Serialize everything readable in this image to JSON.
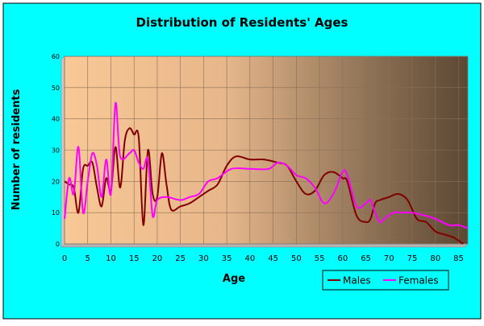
{
  "chart_data": {
    "type": "line",
    "title": "Distribution of Residents' Ages",
    "xlabel": "Age",
    "ylabel": "Number of residents",
    "xlim": [
      0,
      87
    ],
    "ylim": [
      0,
      60
    ],
    "x_ticks": [
      0,
      5,
      10,
      15,
      20,
      25,
      30,
      35,
      40,
      45,
      50,
      55,
      60,
      65,
      70,
      75,
      80,
      85
    ],
    "y_ticks": [
      0,
      10,
      20,
      30,
      40,
      50,
      60
    ],
    "grid": true,
    "legend_position": "bottom-right",
    "series": [
      {
        "name": "Males",
        "color": "#800000",
        "points": [
          [
            0,
            20
          ],
          [
            1,
            19
          ],
          [
            2,
            18
          ],
          [
            3,
            10
          ],
          [
            4,
            24
          ],
          [
            5,
            25
          ],
          [
            6,
            26
          ],
          [
            7,
            18
          ],
          [
            8,
            12
          ],
          [
            9,
            21
          ],
          [
            10,
            17
          ],
          [
            11,
            31
          ],
          [
            12,
            18
          ],
          [
            13,
            33
          ],
          [
            14,
            37
          ],
          [
            15,
            35
          ],
          [
            16,
            34
          ],
          [
            17,
            6
          ],
          [
            18,
            30
          ],
          [
            19,
            16
          ],
          [
            20,
            15
          ],
          [
            21,
            29
          ],
          [
            22,
            19
          ],
          [
            23,
            11
          ],
          [
            25,
            12
          ],
          [
            27,
            13
          ],
          [
            29,
            15
          ],
          [
            31,
            17
          ],
          [
            33,
            19
          ],
          [
            35,
            25
          ],
          [
            37,
            28
          ],
          [
            40,
            27
          ],
          [
            43,
            27
          ],
          [
            46,
            26
          ],
          [
            48,
            25
          ],
          [
            50,
            20
          ],
          [
            52,
            16
          ],
          [
            54,
            17
          ],
          [
            56,
            22
          ],
          [
            58,
            23
          ],
          [
            60,
            21
          ],
          [
            61,
            20
          ],
          [
            63,
            9
          ],
          [
            65,
            7
          ],
          [
            66,
            8
          ],
          [
            67,
            13
          ],
          [
            68,
            14
          ],
          [
            70,
            15
          ],
          [
            72,
            16
          ],
          [
            74,
            14
          ],
          [
            76,
            8
          ],
          [
            78,
            7
          ],
          [
            80,
            4
          ],
          [
            82,
            3
          ],
          [
            84,
            2
          ],
          [
            86,
            0
          ]
        ]
      },
      {
        "name": "Females",
        "color": "#FF00FF",
        "points": [
          [
            0,
            8
          ],
          [
            1,
            21
          ],
          [
            2,
            16
          ],
          [
            3,
            31
          ],
          [
            4,
            10
          ],
          [
            5,
            20
          ],
          [
            6,
            29
          ],
          [
            7,
            25
          ],
          [
            8,
            15
          ],
          [
            9,
            27
          ],
          [
            10,
            16
          ],
          [
            11,
            45
          ],
          [
            12,
            28
          ],
          [
            14,
            29
          ],
          [
            15,
            30
          ],
          [
            16,
            26
          ],
          [
            17,
            24
          ],
          [
            18,
            27
          ],
          [
            19,
            9
          ],
          [
            20,
            14
          ],
          [
            22,
            15
          ],
          [
            25,
            14
          ],
          [
            27,
            15
          ],
          [
            29,
            16
          ],
          [
            31,
            20
          ],
          [
            33,
            21
          ],
          [
            36,
            24
          ],
          [
            40,
            24
          ],
          [
            44,
            24
          ],
          [
            46,
            26
          ],
          [
            48,
            25
          ],
          [
            50,
            22
          ],
          [
            52,
            21
          ],
          [
            54,
            18
          ],
          [
            56,
            13
          ],
          [
            58,
            16
          ],
          [
            60,
            23
          ],
          [
            61,
            22
          ],
          [
            63,
            12
          ],
          [
            65,
            13
          ],
          [
            66,
            14
          ],
          [
            67,
            10
          ],
          [
            68,
            7
          ],
          [
            69,
            8
          ],
          [
            71,
            10
          ],
          [
            73,
            10
          ],
          [
            75,
            10
          ],
          [
            78,
            9
          ],
          [
            80,
            8
          ],
          [
            83,
            6
          ],
          [
            85,
            6
          ],
          [
            87,
            5
          ]
        ]
      }
    ]
  }
}
